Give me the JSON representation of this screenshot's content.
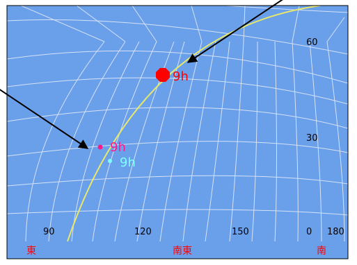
{
  "sky_chart": {
    "colors": {
      "sky": "#6A9FEA",
      "grid": "#D7E3F7",
      "ecliptic": "#E8E86A",
      "label": "#000000",
      "direction": "#FF0000",
      "sun": "#FF0000",
      "body2": "#FF1A8C",
      "body3": "#7FFFFF",
      "arrow": "#000000",
      "border": "#000000"
    },
    "altitude_labels": [
      "60",
      "30"
    ],
    "azimuth_labels": [
      "90",
      "120",
      "150",
      "0",
      "180"
    ],
    "direction_labels": [
      "東",
      "南東",
      "南"
    ],
    "markers": [
      {
        "id": "sun",
        "label": "9h",
        "icon": "filled-octagon-icon"
      },
      {
        "id": "body2",
        "label": "9h",
        "icon": "small-dot-icon"
      },
      {
        "id": "body3",
        "label": "9h",
        "icon": "small-dot-icon"
      }
    ]
  }
}
